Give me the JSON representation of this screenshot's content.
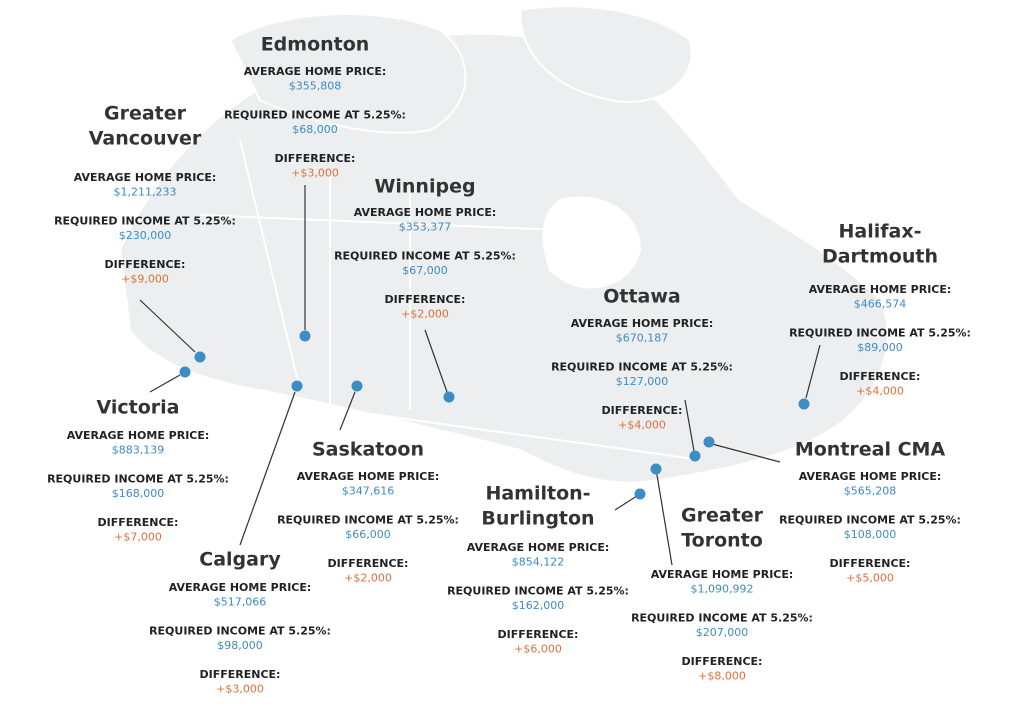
{
  "labels": {
    "price": "AVERAGE HOME PRICE:",
    "income": "REQUIRED INCOME AT 5.25%:",
    "difference": "DIFFERENCE:"
  },
  "cities": [
    {
      "name": [
        "Edmonton"
      ],
      "price": "$355,808",
      "income": "$68,000",
      "difference": "+$3,000"
    },
    {
      "name": [
        "Greater",
        "Vancouver"
      ],
      "price": "$1,211,233",
      "income": "$230,000",
      "difference": "+$9,000"
    },
    {
      "name": [
        "Victoria"
      ],
      "price": "$883,139",
      "income": "$168,000",
      "difference": "+$7,000"
    },
    {
      "name": [
        "Winnipeg"
      ],
      "price": "$353,377",
      "income": "$67,000",
      "difference": "+$2,000"
    },
    {
      "name": [
        "Saskatoon"
      ],
      "price": "$347,616",
      "income": "$66,000",
      "difference": "+$2,000"
    },
    {
      "name": [
        "Calgary"
      ],
      "price": "$517,066",
      "income": "$98,000",
      "difference": "+$3,000"
    },
    {
      "name": [
        "Ottawa"
      ],
      "price": "$670,187",
      "income": "$127,000",
      "difference": "+$4,000"
    },
    {
      "name": [
        "Halifax-",
        "Dartmouth"
      ],
      "price": "$466,574",
      "income": "$89,000",
      "difference": "+$4,000"
    },
    {
      "name": [
        "Montreal CMA"
      ],
      "price": "$565,208",
      "income": "$108,000",
      "difference": "+$5,000"
    },
    {
      "name": [
        "Hamilton-",
        "Burlington"
      ],
      "price": "$854,122",
      "income": "$162,000",
      "difference": "+$6,000"
    },
    {
      "name": [
        "Greater",
        "Toronto"
      ],
      "price": "$1,090,992",
      "income": "$207,000",
      "difference": "+$8,000"
    }
  ]
}
